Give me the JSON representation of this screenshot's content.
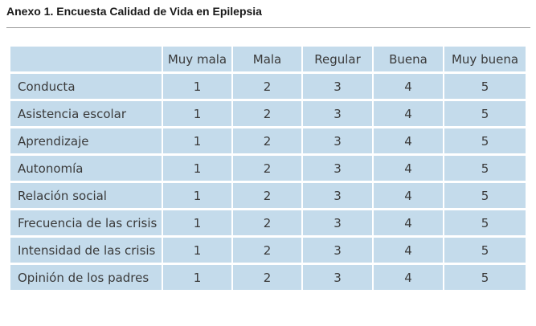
{
  "document": {
    "title": "Anexo 1. Encuesta Calidad de Vida en Epilepsia"
  },
  "table": {
    "headers": [
      "",
      "Muy mala",
      "Mala",
      "Regular",
      "Buena",
      "Muy buena"
    ],
    "rows": [
      {
        "label": "Conducta",
        "values": [
          "1",
          "2",
          "3",
          "4",
          "5"
        ]
      },
      {
        "label": "Asistencia escolar",
        "values": [
          "1",
          "2",
          "3",
          "4",
          "5"
        ]
      },
      {
        "label": "Aprendizaje",
        "values": [
          "1",
          "2",
          "3",
          "4",
          "5"
        ]
      },
      {
        "label": "Autonomía",
        "values": [
          "1",
          "2",
          "3",
          "4",
          "5"
        ]
      },
      {
        "label": "Relación social",
        "values": [
          "1",
          "2",
          "3",
          "4",
          "5"
        ]
      },
      {
        "label": "Frecuencia de las crisis",
        "values": [
          "1",
          "2",
          "3",
          "4",
          "5"
        ]
      },
      {
        "label": "Intensidad de las crisis",
        "values": [
          "1",
          "2",
          "3",
          "4",
          "5"
        ]
      },
      {
        "label": "Opinión de los padres",
        "values": [
          "1",
          "2",
          "3",
          "4",
          "5"
        ]
      }
    ]
  },
  "colors": {
    "cell_background": "#c4dbeb",
    "cell_border": "#ffffff",
    "title_text": "#1a1a1a",
    "cell_text": "#3a3a3a",
    "rule": "#9a9a9a"
  }
}
